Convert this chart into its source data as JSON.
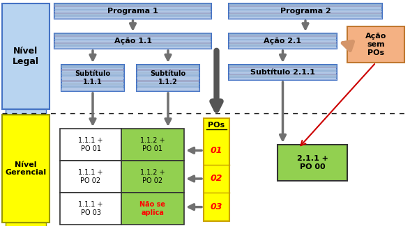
{
  "fig_w": 5.88,
  "fig_h": 3.25,
  "dpi": 100,
  "bg": "#ffffff",
  "blue_light": "#b8d4f0",
  "blue_box": "#aec6e8",
  "yellow": "#ffff00",
  "green": "#92d050",
  "orange": "#f4b183",
  "white": "#ffffff",
  "red": "#ff0000",
  "dark_yellow": "#c8a000",
  "stripe1": "#7f9ec0",
  "stripe2": "#9090b8",
  "stripe3": "#c0c8e0",
  "arrow_gray": "#707070",
  "arrow_dark": "#505050",
  "edge_blue": "#4472c4",
  "edge_dark": "#333333",
  "programa1_label": "Programa 1",
  "programa2_label": "Programa 2",
  "acao11_label": "Ação 1.1",
  "acao21_label": "Ação 2.1",
  "sub111_label": "Subtítulo\n1.1.1",
  "sub112_label": "Subtítulo\n1.1.2",
  "sub211_label": "Subtítulo 2.1.1",
  "acao_sem_label": "Ação\nsem\nPOs",
  "pos_label": "POs",
  "po01": "01",
  "po02": "02",
  "po03": "03",
  "cell11": "1.1.1 +\nPO 01",
  "cell12": "1.1.2 +\nPO 01",
  "cell21": "1.1.1 +\nPO 02",
  "cell22": "1.1.2 +\nPO 02",
  "cell31": "1.1.1 +\nPO 03",
  "cell32": "Não se\naplica",
  "cell211": "2.1.1 +\nPO 00",
  "nivel_legal_label": "Nível\nLegal",
  "nivel_gerencial_label": "Nível\nGerencial"
}
